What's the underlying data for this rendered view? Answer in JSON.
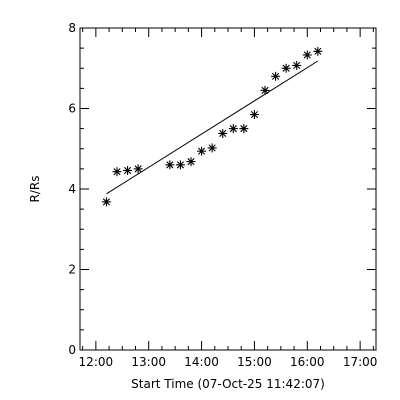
{
  "chart_data": {
    "type": "scatter",
    "xlabel": "Start Time (07-Oct-25 11:42:07)",
    "ylabel": "R/Rs",
    "xlim": [
      "11:42",
      "17:18"
    ],
    "ylim": [
      0,
      8
    ],
    "x_ticks": [
      {
        "label": "12:00",
        "time": "12:00"
      },
      {
        "label": "13:00",
        "time": "13:00"
      },
      {
        "label": "14:00",
        "time": "14:00"
      },
      {
        "label": "15:00",
        "time": "15:00"
      },
      {
        "label": "16:00",
        "time": "16:00"
      },
      {
        "label": "17:00",
        "time": "17:00"
      }
    ],
    "y_ticks": [
      {
        "label": "0",
        "value": 0
      },
      {
        "label": "2",
        "value": 2
      },
      {
        "label": "4",
        "value": 4
      },
      {
        "label": "6",
        "value": 6
      },
      {
        "label": "8",
        "value": 8
      }
    ],
    "grid": false,
    "marker": "asterisk",
    "points": [
      {
        "x": "12:12",
        "y": 3.68
      },
      {
        "x": "12:24",
        "y": 4.43
      },
      {
        "x": "12:36",
        "y": 4.46
      },
      {
        "x": "12:48",
        "y": 4.5
      },
      {
        "x": "13:24",
        "y": 4.6
      },
      {
        "x": "13:36",
        "y": 4.6
      },
      {
        "x": "13:48",
        "y": 4.68
      },
      {
        "x": "14:00",
        "y": 4.94
      },
      {
        "x": "14:12",
        "y": 5.02
      },
      {
        "x": "14:24",
        "y": 5.38
      },
      {
        "x": "14:36",
        "y": 5.5
      },
      {
        "x": "14:48",
        "y": 5.5
      },
      {
        "x": "15:00",
        "y": 5.85
      },
      {
        "x": "15:12",
        "y": 6.45
      },
      {
        "x": "15:24",
        "y": 6.8
      },
      {
        "x": "15:36",
        "y": 7.0
      },
      {
        "x": "15:48",
        "y": 7.07
      },
      {
        "x": "16:00",
        "y": 7.33
      },
      {
        "x": "16:12",
        "y": 7.42
      }
    ],
    "fit_line": [
      {
        "x": "12:12",
        "y": 3.88
      },
      {
        "x": "16:12",
        "y": 7.18
      }
    ]
  }
}
